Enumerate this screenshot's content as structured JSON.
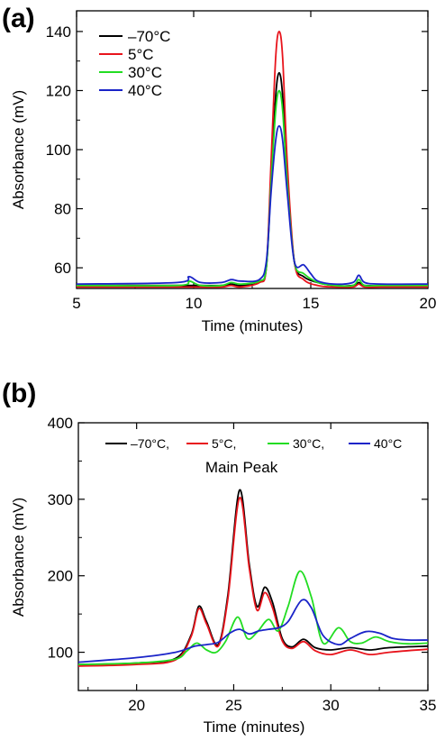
{
  "chart_data": [
    {
      "panel": "(a)",
      "type": "line",
      "xlabel": "Time (minutes)",
      "ylabel": "Absorbance (mV)",
      "xlim": [
        5,
        20
      ],
      "ylim": [
        53,
        147
      ],
      "xticks": [
        5,
        10,
        15,
        20
      ],
      "yticks": [
        60,
        80,
        100,
        120,
        140
      ],
      "legend_position": "top-left",
      "series": [
        {
          "name": "–70°C",
          "color": "#000000",
          "x": [
            5,
            9.3,
            9.8,
            10.3,
            11.2,
            11.6,
            12.0,
            12.8,
            13.1,
            13.3,
            13.5,
            13.65,
            13.8,
            14.0,
            14.3,
            14.7,
            15.3,
            16,
            16.8,
            17.05,
            17.3,
            18,
            20
          ],
          "y": [
            54,
            54,
            54,
            54,
            54,
            54.5,
            54,
            55,
            60,
            90,
            118,
            126,
            118,
            90,
            62,
            57,
            55,
            54,
            54,
            55,
            54,
            54,
            54
          ]
        },
        {
          "name": "5°C",
          "color": "#e8141c",
          "x": [
            5,
            9.3,
            9.8,
            10.3,
            11.2,
            11.6,
            12.0,
            12.8,
            13.1,
            13.3,
            13.5,
            13.65,
            13.8,
            14.0,
            14.3,
            14.7,
            15.3,
            16,
            16.8,
            17.05,
            17.3,
            18,
            20
          ],
          "y": [
            53.5,
            53.5,
            53.5,
            53.5,
            53.5,
            54,
            53.5,
            55,
            60,
            95,
            131,
            140,
            131,
            95,
            62,
            56,
            54,
            53.5,
            53.5,
            54.5,
            53.5,
            53.5,
            53.5
          ]
        },
        {
          "name": "30°C",
          "color": "#22dd22",
          "x": [
            5,
            9.3,
            9.8,
            10.3,
            11.2,
            11.6,
            12.0,
            12.8,
            13.1,
            13.3,
            13.5,
            13.65,
            13.8,
            14.0,
            14.3,
            14.7,
            15.3,
            16,
            16.8,
            17.05,
            17.3,
            18,
            20
          ],
          "y": [
            54,
            54,
            55.5,
            54,
            54,
            55,
            54.5,
            55.5,
            60,
            88,
            113,
            120,
            113,
            88,
            62,
            58,
            55,
            54,
            54,
            56,
            54,
            54,
            54
          ]
        },
        {
          "name": "40°C",
          "color": "#1a24c8",
          "x": [
            5,
            9.3,
            9.8,
            10.3,
            11.2,
            11.6,
            12.0,
            12.8,
            13.1,
            13.3,
            13.5,
            13.65,
            13.8,
            14.0,
            14.3,
            14.7,
            15.0,
            15.3,
            16,
            16.8,
            17.05,
            17.3,
            18,
            20
          ],
          "y": [
            54.5,
            55,
            57,
            55,
            55,
            56,
            55.5,
            56,
            62,
            85,
            103,
            108,
            103,
            85,
            62,
            61,
            58,
            55.5,
            54.5,
            55,
            57.5,
            55,
            54.5,
            54.5
          ]
        }
      ]
    },
    {
      "panel": "(b)",
      "type": "line",
      "xlabel": "Time (minutes)",
      "ylabel": "Absorbance (mV)",
      "xlim": [
        17,
        35
      ],
      "ylim": [
        50,
        400
      ],
      "xticks": [
        20,
        25,
        30,
        35
      ],
      "yticks": [
        100,
        200,
        300,
        400
      ],
      "legend_position": "top",
      "annotations": [
        {
          "text": "Main Peak",
          "x": 25.4,
          "y": 335
        }
      ],
      "series": [
        {
          "name": "–70°C,",
          "color": "#000000",
          "x": [
            17,
            20,
            22,
            22.8,
            23.2,
            23.6,
            24.2,
            24.7,
            25.3,
            25.8,
            26.2,
            26.6,
            27.0,
            27.5,
            28.0,
            28.6,
            29.2,
            30,
            31,
            32,
            33,
            35
          ],
          "y": [
            84,
            86,
            92,
            122,
            160,
            140,
            110,
            175,
            312,
            215,
            160,
            185,
            165,
            118,
            107,
            117,
            106,
            103,
            106,
            103,
            106,
            108
          ]
        },
        {
          "name": "5°C,",
          "color": "#e8141c",
          "x": [
            17,
            20,
            22,
            22.8,
            23.2,
            23.6,
            24.2,
            24.7,
            25.3,
            25.8,
            26.2,
            26.6,
            27.0,
            27.5,
            28.0,
            28.6,
            29.2,
            30,
            31,
            32,
            33,
            35
          ],
          "y": [
            82,
            84,
            90,
            120,
            157,
            137,
            108,
            170,
            302,
            210,
            155,
            178,
            158,
            115,
            105,
            114,
            102,
            97,
            103,
            97,
            100,
            104
          ]
        },
        {
          "name": "30°C,",
          "color": "#22dd22",
          "x": [
            17,
            20,
            22,
            22.6,
            23.1,
            23.6,
            24.1,
            24.6,
            25.2,
            25.7,
            26.2,
            26.8,
            27.3,
            27.8,
            28.4,
            29.0,
            29.6,
            30.4,
            31.0,
            31.6,
            32.3,
            33.0,
            34,
            35
          ],
          "y": [
            84,
            86,
            91,
            102,
            112,
            103,
            100,
            115,
            146,
            118,
            126,
            143,
            128,
            160,
            206,
            172,
            112,
            132,
            114,
            112,
            120,
            114,
            111,
            112
          ]
        },
        {
          "name": "40°C",
          "color": "#1a24c8",
          "x": [
            17,
            20,
            22,
            23,
            23.6,
            24.2,
            24.8,
            25.3,
            25.8,
            26.3,
            26.8,
            27.3,
            27.8,
            28.5,
            29.0,
            29.6,
            30.4,
            31.0,
            31.8,
            32.5,
            33.2,
            34,
            35
          ],
          "y": [
            87,
            93,
            100,
            108,
            110,
            113,
            125,
            130,
            124,
            128,
            130,
            132,
            140,
            168,
            158,
            122,
            110,
            118,
            127,
            125,
            118,
            116,
            116
          ]
        }
      ]
    }
  ]
}
